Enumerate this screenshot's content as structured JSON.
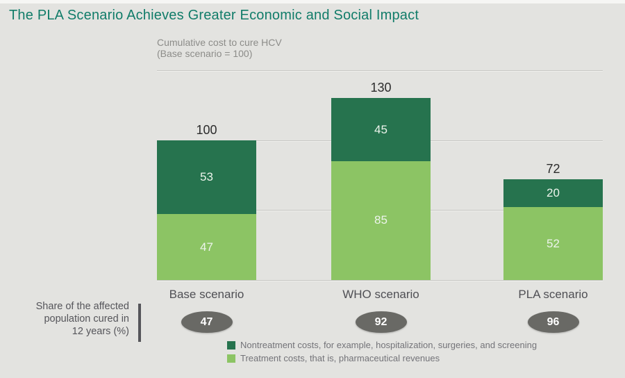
{
  "title": "The PLA Scenario Achieves Greater Economic and Social Impact",
  "subtitle": {
    "line1": "Cumulative cost to cure HCV",
    "line2": "(Base scenario = 100)"
  },
  "chart_data": {
    "type": "bar",
    "stacked": true,
    "title": "Cumulative cost to cure HCV",
    "subtitle": "(Base scenario = 100)",
    "categories": [
      "Base scenario",
      "WHO scenario",
      "PLA scenario"
    ],
    "series": [
      {
        "name": "Nontreatment costs, for example, hospitalization, surgeries, and screening",
        "color": "#26734e",
        "position": "top",
        "values": [
          53,
          45,
          20
        ]
      },
      {
        "name": "Treatment costs, that is, pharmaceutical revenues",
        "color": "#8cc464",
        "position": "bottom",
        "values": [
          47,
          85,
          52
        ]
      }
    ],
    "totals": [
      100,
      130,
      72
    ],
    "ylim": [
      0,
      150
    ],
    "gridline_values": [
      0,
      50,
      100,
      150
    ],
    "grid": true,
    "y_axis_labels_shown": false,
    "legend_position": "bottom-left"
  },
  "share_cured": {
    "label_lines": [
      "Share of the affected",
      "population cured in",
      "12 years (%)"
    ],
    "label": "Share of the affected population cured in 12 years (%)",
    "values": [
      47,
      92,
      96
    ]
  },
  "colors": {
    "background": "#e3e3e0",
    "title": "#117c69",
    "subtitle": "#8c8c89",
    "nontreatment_green": "#26734e",
    "treatment_green": "#8cc464",
    "badge_gray": "#696965",
    "gridline": "#c7c7c4",
    "segment_text": "#edf4ec",
    "total_text": "#2b2b2b"
  }
}
